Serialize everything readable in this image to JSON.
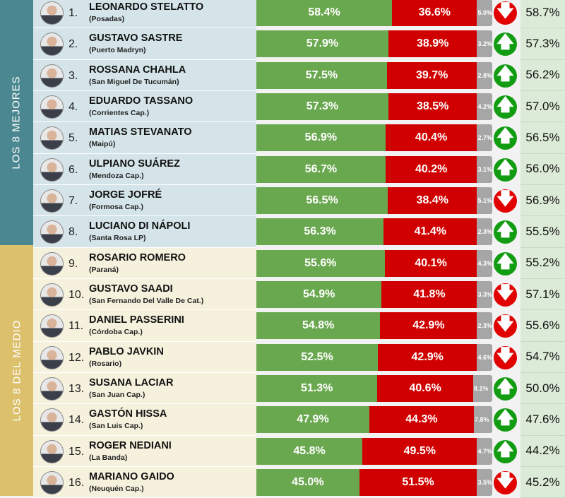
{
  "groups": {
    "top": "LOS 8 MEJORES",
    "middle": "LOS 8 DEL MEDIO"
  },
  "colors": {
    "positive": "#6aa84f",
    "negative": "#d10000",
    "neutral": "#a6a6a6",
    "up": "#129c12",
    "down": "#e00000"
  },
  "rows": [
    {
      "rank": "1.",
      "name": "LEONARDO STELATTO",
      "city": "(Posadas)",
      "pos": "58.4%",
      "neg": "36.6%",
      "ns": "5.0%",
      "trend": "down",
      "prev": "58.7%"
    },
    {
      "rank": "2.",
      "name": "GUSTAVO SASTRE",
      "city": "(Puerto Madryn)",
      "pos": "57.9%",
      "neg": "38.9%",
      "ns": "3.2%",
      "trend": "up",
      "prev": "57.3%"
    },
    {
      "rank": "3.",
      "name": "ROSSANA CHAHLA",
      "city": "(San Miguel De Tucumán)",
      "pos": "57.5%",
      "neg": "39.7%",
      "ns": "2.8%",
      "trend": "up",
      "prev": "56.2%"
    },
    {
      "rank": "4.",
      "name": "EDUARDO TASSANO",
      "city": "(Corrientes Cap.)",
      "pos": "57.3%",
      "neg": "38.5%",
      "ns": "4.2%",
      "trend": "up",
      "prev": "57.0%"
    },
    {
      "rank": "5.",
      "name": "MATIAS STEVANATO",
      "city": "(Maipú)",
      "pos": "56.9%",
      "neg": "40.4%",
      "ns": "2.7%",
      "trend": "up",
      "prev": "56.5%"
    },
    {
      "rank": "6.",
      "name": "ULPIANO SUÁREZ",
      "city": "(Mendoza Cap.)",
      "pos": "56.7%",
      "neg": "40.2%",
      "ns": "3.1%",
      "trend": "up",
      "prev": "56.0%"
    },
    {
      "rank": "7.",
      "name": "JORGE JOFRÉ",
      "city": "(Formosa Cap.)",
      "pos": "56.5%",
      "neg": "38.4%",
      "ns": "5.1%",
      "trend": "down",
      "prev": "56.9%"
    },
    {
      "rank": "8.",
      "name": "LUCIANO DI NÁPOLI",
      "city": "(Santa Rosa LP)",
      "pos": "56.3%",
      "neg": "41.4%",
      "ns": "2.3%",
      "trend": "up",
      "prev": "55.5%"
    },
    {
      "rank": "9.",
      "name": "ROSARIO ROMERO",
      "city": "(Paraná)",
      "pos": "55.6%",
      "neg": "40.1%",
      "ns": "4.3%",
      "trend": "up",
      "prev": "55.2%"
    },
    {
      "rank": "10.",
      "name": "GUSTAVO SAADI",
      "city": "(San Fernando Del Valle De Cat.)",
      "pos": "54.9%",
      "neg": "41.8%",
      "ns": "3.3%",
      "trend": "down",
      "prev": "57.1%"
    },
    {
      "rank": "11.",
      "name": "DANIEL PASSERINI",
      "city": "(Córdoba Cap.)",
      "pos": "54.8%",
      "neg": "42.9%",
      "ns": "2.3%",
      "trend": "down",
      "prev": "55.6%"
    },
    {
      "rank": "12.",
      "name": "PABLO JAVKIN",
      "city": "(Rosario)",
      "pos": "52.5%",
      "neg": "42.9%",
      "ns": "4.6%",
      "trend": "down",
      "prev": "54.7%"
    },
    {
      "rank": "13.",
      "name": "SUSANA LACIAR",
      "city": "(San Juan Cap.)",
      "pos": "51.3%",
      "neg": "40.6%",
      "ns": "8.1%",
      "trend": "up",
      "prev": "50.0%"
    },
    {
      "rank": "14.",
      "name": "GASTÓN HISSA",
      "city": "(San Luis Cap.)",
      "pos": "47.9%",
      "neg": "44.3%",
      "ns": "7.8%",
      "trend": "up",
      "prev": "47.6%"
    },
    {
      "rank": "15.",
      "name": "ROGER NEDIANI",
      "city": "(La Banda)",
      "pos": "45.8%",
      "neg": "49.5%",
      "ns": "4.7%",
      "trend": "up",
      "prev": "44.2%"
    },
    {
      "rank": "16.",
      "name": "MARIANO GAIDO",
      "city": "(Neuquén Cap.)",
      "pos": "45.0%",
      "neg": "51.5%",
      "ns": "3.5%",
      "trend": "down",
      "prev": "45.2%"
    }
  ]
}
